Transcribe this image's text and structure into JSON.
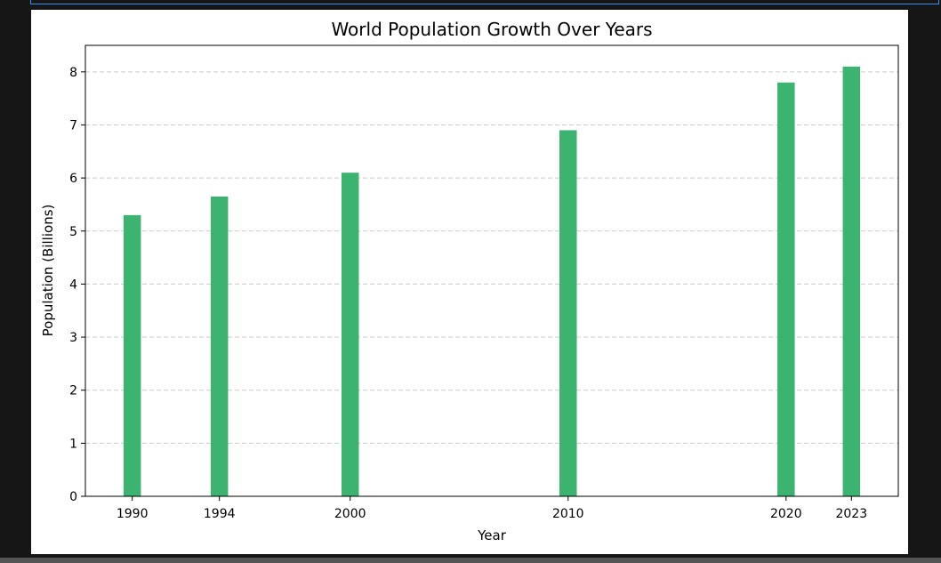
{
  "chart_data": {
    "type": "bar",
    "title": "World Population Growth Over Years",
    "xlabel": "Year",
    "ylabel": "Population (Billions)",
    "x": [
      1990,
      1994,
      2000,
      2010,
      2020,
      2023
    ],
    "xtick_labels": [
      "1990",
      "1994",
      "2000",
      "2010",
      "2020",
      "2023"
    ],
    "values": [
      5.3,
      5.65,
      6.1,
      6.9,
      7.8,
      8.1
    ],
    "yticks": [
      0,
      1,
      2,
      3,
      4,
      5,
      6,
      7,
      8
    ],
    "ylim": [
      0,
      8.5
    ],
    "xlim": [
      1987.85,
      2025.15
    ],
    "grid": "y-dashed",
    "bar_color": "#3cb371"
  }
}
